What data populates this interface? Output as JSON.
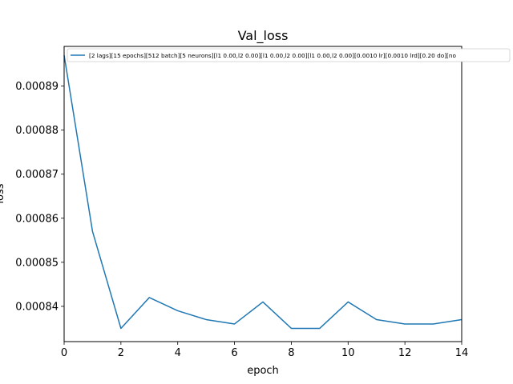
{
  "chart_data": {
    "type": "line",
    "title": "Val_loss",
    "xlabel": "epoch",
    "ylabel": "loss",
    "xlim": [
      0,
      14
    ],
    "ylim": [
      0.000832,
      0.000899
    ],
    "xticks": [
      0,
      2,
      4,
      6,
      8,
      10,
      12,
      14
    ],
    "xtick_labels": [
      "0",
      "2",
      "4",
      "6",
      "8",
      "10",
      "12",
      "14"
    ],
    "yticks": [
      0.00084,
      0.00085,
      0.00086,
      0.00087,
      0.00088,
      0.00089
    ],
    "ytick_labels": [
      "0.00084",
      "0.00085",
      "0.00086",
      "0.00087",
      "0.00088",
      "0.00089"
    ],
    "grid": false,
    "legend_position": "top-left",
    "series": [
      {
        "name": "[2 lags][15 epochs][512 batch][5 neurons][l1 0.00,l2 0.00][l1 0.00,l2 0.00][l1 0.00,l2 0.00][0.0010 lr][0.0010 lrd][0.20 do][no",
        "color": "#1f77b4",
        "x": [
          0,
          1,
          2,
          3,
          4,
          5,
          6,
          7,
          8,
          9,
          10,
          11,
          12,
          13,
          14
        ],
        "y": [
          0.000897,
          0.000857,
          0.000835,
          0.000842,
          0.000839,
          0.000837,
          0.000836,
          0.000841,
          0.000835,
          0.000835,
          0.000841,
          0.000837,
          0.000836,
          0.000836,
          0.000837
        ]
      }
    ]
  }
}
